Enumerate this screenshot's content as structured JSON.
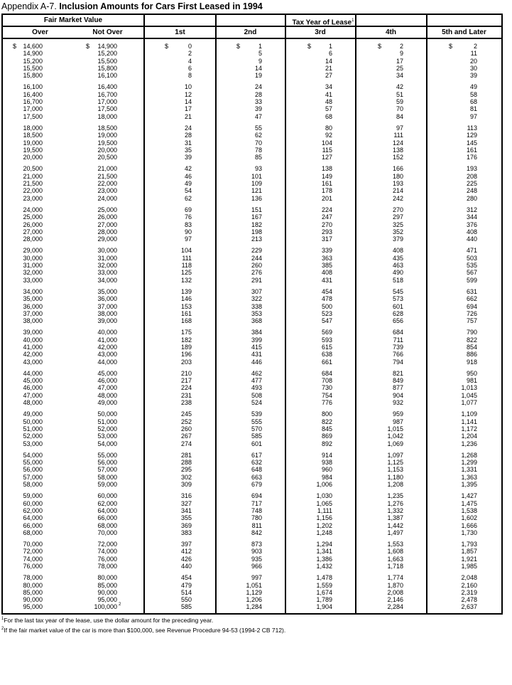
{
  "title": {
    "prefix": "Appendix A-7.",
    "main": "Inclusion Amounts for Cars First Leased in 1994"
  },
  "header": {
    "fair_market_value": "Fair Market Value",
    "tax_year": "Tax Year of Lease",
    "tax_year_note": "1",
    "columns": [
      "Over",
      "Not Over",
      "1st",
      "2nd",
      "3rd",
      "4th",
      "5th and Later"
    ]
  },
  "currency_symbol": "$",
  "last_row_note_marker": "2",
  "groups": [
    [
      [
        "14,600",
        "14,900",
        "0",
        "1",
        "1",
        "2",
        "2"
      ],
      [
        "14,900",
        "15,200",
        "2",
        "5",
        "6",
        "9",
        "11"
      ],
      [
        "15,200",
        "15,500",
        "4",
        "9",
        "14",
        "17",
        "20"
      ],
      [
        "15,500",
        "15,800",
        "6",
        "14",
        "21",
        "25",
        "30"
      ],
      [
        "15,800",
        "16,100",
        "8",
        "19",
        "27",
        "34",
        "39"
      ]
    ],
    [
      [
        "16,100",
        "16,400",
        "10",
        "24",
        "34",
        "42",
        "49"
      ],
      [
        "16,400",
        "16,700",
        "12",
        "28",
        "41",
        "51",
        "58"
      ],
      [
        "16,700",
        "17,000",
        "14",
        "33",
        "48",
        "59",
        "68"
      ],
      [
        "17,000",
        "17,500",
        "17",
        "39",
        "57",
        "70",
        "81"
      ],
      [
        "17,500",
        "18,000",
        "21",
        "47",
        "68",
        "84",
        "97"
      ]
    ],
    [
      [
        "18,000",
        "18,500",
        "24",
        "55",
        "80",
        "97",
        "113"
      ],
      [
        "18,500",
        "19,000",
        "28",
        "62",
        "92",
        "111",
        "129"
      ],
      [
        "19,000",
        "19,500",
        "31",
        "70",
        "104",
        "124",
        "145"
      ],
      [
        "19,500",
        "20,000",
        "35",
        "78",
        "115",
        "138",
        "161"
      ],
      [
        "20,000",
        "20,500",
        "39",
        "85",
        "127",
        "152",
        "176"
      ]
    ],
    [
      [
        "20,500",
        "21,000",
        "42",
        "93",
        "138",
        "166",
        "193"
      ],
      [
        "21,000",
        "21,500",
        "46",
        "101",
        "149",
        "180",
        "208"
      ],
      [
        "21,500",
        "22,000",
        "49",
        "109",
        "161",
        "193",
        "225"
      ],
      [
        "22,000",
        "23,000",
        "54",
        "121",
        "178",
        "214",
        "248"
      ],
      [
        "23,000",
        "24,000",
        "62",
        "136",
        "201",
        "242",
        "280"
      ]
    ],
    [
      [
        "24,000",
        "25,000",
        "69",
        "151",
        "224",
        "270",
        "312"
      ],
      [
        "25,000",
        "26,000",
        "76",
        "167",
        "247",
        "297",
        "344"
      ],
      [
        "26,000",
        "27,000",
        "83",
        "182",
        "270",
        "325",
        "376"
      ],
      [
        "27,000",
        "28,000",
        "90",
        "198",
        "293",
        "352",
        "408"
      ],
      [
        "28,000",
        "29,000",
        "97",
        "213",
        "317",
        "379",
        "440"
      ]
    ],
    [
      [
        "29,000",
        "30,000",
        "104",
        "229",
        "339",
        "408",
        "471"
      ],
      [
        "30,000",
        "31,000",
        "111",
        "244",
        "363",
        "435",
        "503"
      ],
      [
        "31,000",
        "32,000",
        "118",
        "260",
        "385",
        "463",
        "535"
      ],
      [
        "32,000",
        "33,000",
        "125",
        "276",
        "408",
        "490",
        "567"
      ],
      [
        "33,000",
        "34,000",
        "132",
        "291",
        "431",
        "518",
        "599"
      ]
    ],
    [
      [
        "34,000",
        "35,000",
        "139",
        "307",
        "454",
        "545",
        "631"
      ],
      [
        "35,000",
        "36,000",
        "146",
        "322",
        "478",
        "573",
        "662"
      ],
      [
        "36,000",
        "37,000",
        "153",
        "338",
        "500",
        "601",
        "694"
      ],
      [
        "37,000",
        "38,000",
        "161",
        "353",
        "523",
        "628",
        "726"
      ],
      [
        "38,000",
        "39,000",
        "168",
        "368",
        "547",
        "656",
        "757"
      ]
    ],
    [
      [
        "39,000",
        "40,000",
        "175",
        "384",
        "569",
        "684",
        "790"
      ],
      [
        "40,000",
        "41,000",
        "182",
        "399",
        "593",
        "711",
        "822"
      ],
      [
        "41,000",
        "42,000",
        "189",
        "415",
        "615",
        "739",
        "854"
      ],
      [
        "42,000",
        "43,000",
        "196",
        "431",
        "638",
        "766",
        "886"
      ],
      [
        "43,000",
        "44,000",
        "203",
        "446",
        "661",
        "794",
        "918"
      ]
    ],
    [
      [
        "44,000",
        "45,000",
        "210",
        "462",
        "684",
        "821",
        "950"
      ],
      [
        "45,000",
        "46,000",
        "217",
        "477",
        "708",
        "849",
        "981"
      ],
      [
        "46,000",
        "47,000",
        "224",
        "493",
        "730",
        "877",
        "1,013"
      ],
      [
        "47,000",
        "48,000",
        "231",
        "508",
        "754",
        "904",
        "1,045"
      ],
      [
        "48,000",
        "49,000",
        "238",
        "524",
        "776",
        "932",
        "1,077"
      ]
    ],
    [
      [
        "49,000",
        "50,000",
        "245",
        "539",
        "800",
        "959",
        "1,109"
      ],
      [
        "50,000",
        "51,000",
        "252",
        "555",
        "822",
        "987",
        "1,141"
      ],
      [
        "51,000",
        "52,000",
        "260",
        "570",
        "845",
        "1,015",
        "1,172"
      ],
      [
        "52,000",
        "53,000",
        "267",
        "585",
        "869",
        "1,042",
        "1,204"
      ],
      [
        "53,000",
        "54,000",
        "274",
        "601",
        "892",
        "1,069",
        "1,236"
      ]
    ],
    [
      [
        "54,000",
        "55,000",
        "281",
        "617",
        "914",
        "1,097",
        "1,268"
      ],
      [
        "55,000",
        "56,000",
        "288",
        "632",
        "938",
        "1,125",
        "1,299"
      ],
      [
        "56,000",
        "57,000",
        "295",
        "648",
        "960",
        "1,153",
        "1,331"
      ],
      [
        "57,000",
        "58,000",
        "302",
        "663",
        "984",
        "1,180",
        "1,363"
      ],
      [
        "58,000",
        "59,000",
        "309",
        "679",
        "1,006",
        "1,208",
        "1,395"
      ]
    ],
    [
      [
        "59,000",
        "60,000",
        "316",
        "694",
        "1,030",
        "1,235",
        "1,427"
      ],
      [
        "60,000",
        "62,000",
        "327",
        "717",
        "1,065",
        "1,276",
        "1,475"
      ],
      [
        "62,000",
        "64,000",
        "341",
        "748",
        "1,111",
        "1,332",
        "1,538"
      ],
      [
        "64,000",
        "66,000",
        "355",
        "780",
        "1,156",
        "1,387",
        "1,602"
      ],
      [
        "66,000",
        "68,000",
        "369",
        "811",
        "1,202",
        "1,442",
        "1,666"
      ],
      [
        "68,000",
        "70,000",
        "383",
        "842",
        "1,248",
        "1,497",
        "1,730"
      ]
    ],
    [
      [
        "70,000",
        "72,000",
        "397",
        "873",
        "1,294",
        "1,553",
        "1,793"
      ],
      [
        "72,000",
        "74,000",
        "412",
        "903",
        "1,341",
        "1,608",
        "1,857"
      ],
      [
        "74,000",
        "76,000",
        "426",
        "935",
        "1,386",
        "1,663",
        "1,921"
      ],
      [
        "76,000",
        "78,000",
        "440",
        "966",
        "1,432",
        "1,718",
        "1,985"
      ]
    ],
    [
      [
        "78,000",
        "80,000",
        "454",
        "997",
        "1,478",
        "1,774",
        "2,048"
      ],
      [
        "80,000",
        "85,000",
        "479",
        "1,051",
        "1,559",
        "1,870",
        "2,160"
      ],
      [
        "85,000",
        "90,000",
        "514",
        "1,129",
        "1,674",
        "2,008",
        "2,319"
      ],
      [
        "90,000",
        "95,000",
        "550",
        "1,206",
        "1,789",
        "2,146",
        "2,478"
      ],
      [
        "95,000",
        "100,000",
        "585",
        "1,284",
        "1,904",
        "2,284",
        "2,637"
      ]
    ]
  ],
  "footnotes": [
    {
      "marker": "1",
      "text": "For the last tax year of the lease, use the dollar amount for the preceding year."
    },
    {
      "marker": "2",
      "text": "If the fair market value of the car is more than $100,000, see Revenue Procedure 94-53 (1994-2 CB 712)."
    }
  ]
}
